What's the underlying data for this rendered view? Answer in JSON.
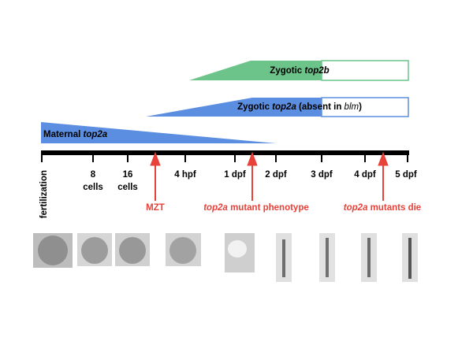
{
  "bars": [
    {
      "label_parts": [
        "Zygotic ",
        "top2b"
      ]
    },
    {
      "label_parts": [
        "Zygotic ",
        "top2a",
        " (absent in ",
        "blm",
        ")"
      ]
    },
    {
      "label_parts": [
        "Maternal ",
        "top2a"
      ]
    }
  ],
  "timeline": [
    [
      "fertilization"
    ],
    [
      "8",
      "cells"
    ],
    [
      "16",
      "cells"
    ],
    [
      "4 hpf"
    ],
    [
      "1 dpf"
    ],
    [
      "2 dpf"
    ],
    [
      "3 dpf"
    ],
    [
      "4 dpf"
    ],
    [
      "5 dpf"
    ]
  ],
  "events": [
    {
      "label_parts": [
        "MZT"
      ]
    },
    {
      "label_parts": [
        "top2a",
        " mutant phenotype"
      ]
    },
    {
      "label_parts": [
        "top2a",
        " mutants die"
      ]
    }
  ]
}
